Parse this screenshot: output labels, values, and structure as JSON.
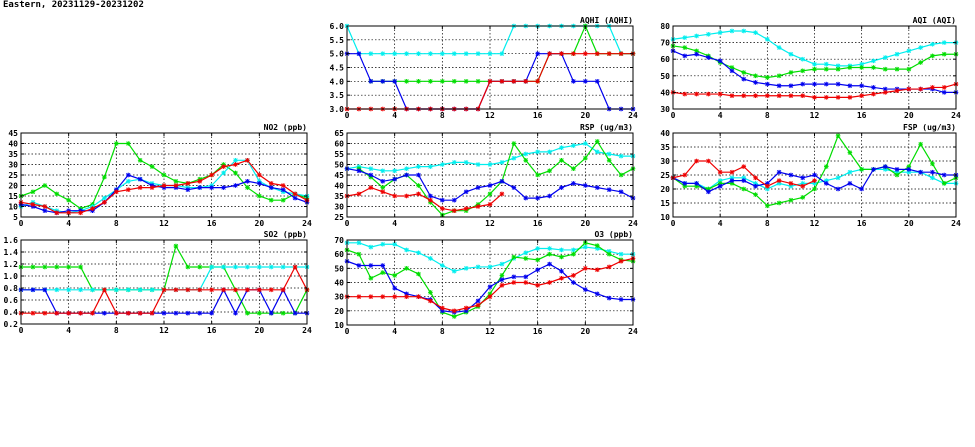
{
  "page": {
    "title": "Eastern, 20231129-20231202"
  },
  "colors": {
    "blue": "#0000ee",
    "red": "#ee0000",
    "green": "#00dd00",
    "cyan": "#00eeee"
  },
  "chart_data": [
    {
      "id": "aqhi",
      "type": "line",
      "title": "AQHI (AQHI)",
      "ylim": [
        3.0,
        6.0
      ],
      "yticks": [
        3.0,
        3.5,
        4.0,
        4.5,
        5.0,
        5.5,
        6.0
      ],
      "ytick_labels": [
        "3.0",
        "3.5",
        "4.0",
        "4.5",
        "5.0",
        "5.5",
        "6.0"
      ],
      "xlim": [
        0,
        24
      ],
      "xticks": [
        0,
        4,
        8,
        12,
        16,
        20,
        24
      ],
      "series": [
        {
          "color": "cyan",
          "values": [
            6,
            5,
            5,
            5,
            5,
            5,
            5,
            5,
            5,
            5,
            5,
            5,
            5,
            5,
            6,
            6,
            6,
            6,
            6,
            6,
            6,
            6,
            6,
            5,
            5
          ]
        },
        {
          "color": "green",
          "values": [
            null,
            null,
            4,
            4,
            4,
            4,
            4,
            4,
            4,
            4,
            4,
            4,
            4,
            4,
            4,
            4,
            4,
            5,
            5,
            5,
            6,
            5,
            5,
            5,
            5
          ]
        },
        {
          "color": "blue",
          "values": [
            5,
            5,
            4,
            4,
            4,
            3,
            3,
            3,
            3,
            3,
            3,
            3,
            4,
            4,
            4,
            4,
            5,
            5,
            5,
            4,
            4,
            4,
            3,
            3,
            3
          ]
        },
        {
          "color": "red",
          "values": [
            3,
            3,
            3,
            3,
            3,
            3,
            3,
            3,
            3,
            3,
            3,
            3,
            4,
            4,
            4,
            4,
            4,
            5,
            5,
            5,
            5,
            5,
            5,
            5,
            5
          ]
        }
      ]
    },
    {
      "id": "aqi",
      "type": "line",
      "title": "AQI (AQI)",
      "ylim": [
        30,
        80
      ],
      "yticks": [
        30,
        40,
        50,
        60,
        70,
        80
      ],
      "ytick_labels": [
        "30",
        "40",
        "50",
        "60",
        "70",
        "80"
      ],
      "xlim": [
        0,
        24
      ],
      "xticks": [
        0,
        4,
        8,
        12,
        16,
        20,
        24
      ],
      "series": [
        {
          "color": "cyan",
          "values": [
            72,
            73,
            74,
            75,
            76,
            77,
            77,
            76,
            72,
            67,
            63,
            60,
            57,
            57,
            56,
            56,
            57,
            59,
            61,
            63,
            65,
            67,
            69,
            70,
            70
          ]
        },
        {
          "color": "green",
          "values": [
            68,
            67,
            65,
            62,
            58,
            55,
            52,
            50,
            49,
            50,
            52,
            53,
            54,
            54,
            54,
            55,
            55,
            55,
            54,
            54,
            54,
            58,
            62,
            63,
            63
          ]
        },
        {
          "color": "blue",
          "values": [
            65,
            62,
            63,
            61,
            59,
            53,
            48,
            46,
            45,
            44,
            44,
            45,
            45,
            45,
            45,
            44,
            44,
            43,
            42,
            42,
            42,
            42,
            42,
            40,
            40
          ]
        },
        {
          "color": "red",
          "values": [
            40,
            39,
            39,
            39,
            39,
            38,
            38,
            38,
            38,
            38,
            38,
            38,
            37,
            37,
            37,
            37,
            38,
            39,
            40,
            41,
            42,
            42,
            43,
            43,
            45
          ]
        }
      ]
    },
    {
      "id": "no2",
      "type": "line",
      "title": "NO2 (ppb)",
      "ylim": [
        5,
        45
      ],
      "yticks": [
        5,
        10,
        15,
        20,
        25,
        30,
        35,
        40,
        45
      ],
      "ytick_labels": [
        "5",
        "10",
        "15",
        "20",
        "25",
        "30",
        "35",
        "40",
        "45"
      ],
      "xlim": [
        0,
        24
      ],
      "xticks": [
        0,
        4,
        8,
        12,
        16,
        20,
        24
      ],
      "series": [
        {
          "color": "green",
          "values": [
            15,
            17,
            20,
            16,
            13,
            9,
            11,
            24,
            40,
            40,
            32,
            29,
            25,
            22,
            21,
            23,
            25,
            30,
            26,
            19,
            15,
            13,
            13,
            16,
            14
          ]
        },
        {
          "color": "cyan",
          "values": [
            10,
            12,
            10,
            8,
            7,
            8,
            10,
            14,
            18,
            22,
            23,
            21,
            20,
            20,
            19,
            19,
            20,
            26,
            32,
            32,
            22,
            19,
            17,
            16,
            15
          ]
        },
        {
          "color": "blue",
          "values": [
            11,
            10,
            8,
            7,
            8,
            8,
            8,
            12,
            18,
            25,
            23,
            20,
            19,
            19,
            18,
            19,
            19,
            19,
            20,
            22,
            21,
            19,
            18,
            14,
            12
          ]
        },
        {
          "color": "red",
          "values": [
            12,
            11,
            10,
            7,
            7,
            7,
            9,
            12,
            17,
            18,
            19,
            19,
            20,
            20,
            21,
            22,
            25,
            29,
            30,
            32,
            25,
            21,
            20,
            16,
            13
          ]
        }
      ]
    },
    {
      "id": "rsp",
      "type": "line",
      "title": "RSP (ug/m3)",
      "ylim": [
        25,
        65
      ],
      "yticks": [
        25,
        30,
        35,
        40,
        45,
        50,
        55,
        60,
        65
      ],
      "ytick_labels": [
        "25",
        "30",
        "35",
        "40",
        "45",
        "50",
        "55",
        "60",
        "65"
      ],
      "xlim": [
        0,
        24
      ],
      "xticks": [
        0,
        4,
        8,
        12,
        16,
        20,
        24
      ],
      "series": [
        {
          "color": "cyan",
          "values": [
            48,
            49,
            48,
            47,
            47,
            48,
            49,
            49,
            50,
            51,
            51,
            50,
            50,
            51,
            53,
            55,
            56,
            56,
            58,
            59,
            60,
            56,
            55,
            54,
            54
          ]
        },
        {
          "color": "green",
          "values": [
            null,
            48,
            44,
            39,
            43,
            45,
            40,
            32,
            26,
            28,
            28,
            31,
            36,
            42,
            60,
            52,
            45,
            47,
            52,
            48,
            53,
            61,
            52,
            45,
            48
          ]
        },
        {
          "color": "blue",
          "values": [
            48,
            47,
            45,
            42,
            43,
            45,
            45,
            35,
            33,
            33,
            37,
            39,
            40,
            42,
            39,
            34,
            34,
            35,
            39,
            41,
            40,
            39,
            38,
            37,
            34
          ]
        },
        {
          "color": "red",
          "values": [
            35,
            36,
            39,
            37,
            35,
            35,
            36,
            33,
            29,
            28,
            29,
            30,
            31,
            36,
            null,
            null,
            null,
            null,
            null,
            null,
            null,
            null,
            null,
            null,
            null
          ]
        }
      ]
    },
    {
      "id": "fsp",
      "type": "line",
      "title": "FSP (ug/m3)",
      "ylim": [
        10,
        40
      ],
      "yticks": [
        10,
        15,
        20,
        25,
        30,
        35,
        40
      ],
      "ytick_labels": [
        "10",
        "15",
        "20",
        "25",
        "30",
        "35",
        "40"
      ],
      "xlim": [
        0,
        24
      ],
      "xticks": [
        0,
        4,
        8,
        12,
        16,
        20,
        24
      ],
      "series": [
        {
          "color": "cyan",
          "values": [
            24,
            22,
            22,
            20,
            23,
            24,
            24,
            22,
            20,
            22,
            21,
            22,
            22,
            23,
            24,
            26,
            27,
            27,
            27,
            26,
            26,
            26,
            24,
            22,
            22
          ]
        },
        {
          "color": "green",
          "values": [
            24,
            21,
            21,
            20,
            22,
            22,
            20,
            18,
            14,
            15,
            16,
            17,
            20,
            28,
            39,
            33,
            27,
            27,
            28,
            25,
            28,
            36,
            29,
            22,
            24
          ]
        },
        {
          "color": "blue",
          "values": [
            24,
            22,
            22,
            19,
            21,
            23,
            23,
            21,
            22,
            26,
            25,
            24,
            25,
            22,
            20,
            22,
            20,
            27,
            28,
            27,
            27,
            26,
            26,
            25,
            25
          ]
        },
        {
          "color": "red",
          "values": [
            24,
            25,
            30,
            30,
            26,
            26,
            28,
            24,
            21,
            23,
            22,
            21,
            23,
            null,
            null,
            null,
            null,
            null,
            null,
            null,
            null,
            null,
            null,
            null,
            null
          ]
        }
      ]
    },
    {
      "id": "so2",
      "type": "line",
      "title": "SO2 (ppb)",
      "ylim": [
        0.2,
        1.6
      ],
      "yticks": [
        0.2,
        0.4,
        0.6,
        0.8,
        1.0,
        1.2,
        1.4,
        1.6
      ],
      "ytick_labels": [
        "0.2",
        "0.4",
        "0.6",
        "0.8",
        "1.0",
        "1.2",
        "1.4",
        "1.6"
      ],
      "xlim": [
        0,
        24
      ],
      "xticks": [
        0,
        4,
        8,
        12,
        16,
        20,
        24
      ],
      "series": [
        {
          "color": "green",
          "values": [
            1.15,
            1.15,
            1.15,
            1.15,
            1.15,
            1.15,
            0.77,
            0.77,
            0.77,
            0.77,
            0.77,
            0.77,
            0.77,
            1.5,
            1.15,
            1.15,
            1.15,
            1.15,
            0.77,
            0.38,
            0.38,
            0.38,
            0.38,
            0.38,
            0.77
          ]
        },
        {
          "color": "cyan",
          "values": [
            0.77,
            0.77,
            0.77,
            0.77,
            0.77,
            0.77,
            0.77,
            0.77,
            0.77,
            0.77,
            0.77,
            0.77,
            0.77,
            0.77,
            0.77,
            0.77,
            1.15,
            1.15,
            1.15,
            1.15,
            1.15,
            1.15,
            1.15,
            1.15,
            1.15
          ]
        },
        {
          "color": "blue",
          "values": [
            0.77,
            0.77,
            0.77,
            0.38,
            0.38,
            0.38,
            0.38,
            0.38,
            0.38,
            0.38,
            0.38,
            0.38,
            0.38,
            0.38,
            0.38,
            0.38,
            0.38,
            0.77,
            0.38,
            0.77,
            0.77,
            0.38,
            0.77,
            0.38,
            0.38
          ]
        },
        {
          "color": "red",
          "values": [
            0.38,
            0.38,
            0.38,
            0.38,
            0.38,
            0.38,
            0.38,
            0.77,
            0.38,
            0.38,
            0.38,
            0.38,
            0.77,
            0.77,
            0.77,
            0.77,
            0.77,
            0.77,
            0.77,
            0.77,
            0.77,
            0.77,
            0.77,
            1.15,
            0.77
          ]
        }
      ]
    },
    {
      "id": "o3",
      "type": "line",
      "title": "O3 (ppb)",
      "ylim": [
        10,
        70
      ],
      "yticks": [
        10,
        20,
        30,
        40,
        50,
        60,
        70
      ],
      "ytick_labels": [
        "10",
        "20",
        "30",
        "40",
        "50",
        "60",
        "70"
      ],
      "xlim": [
        0,
        24
      ],
      "xticks": [
        0,
        4,
        8,
        12,
        16,
        20,
        24
      ],
      "series": [
        {
          "color": "cyan",
          "values": [
            68,
            68,
            65,
            67,
            67,
            63,
            61,
            57,
            52,
            48,
            50,
            51,
            51,
            53,
            57,
            61,
            64,
            64,
            63,
            63,
            65,
            64,
            62,
            60,
            60
          ]
        },
        {
          "color": "green",
          "values": [
            63,
            60,
            43,
            47,
            45,
            50,
            46,
            33,
            19,
            16,
            19,
            23,
            32,
            45,
            58,
            57,
            56,
            60,
            58,
            60,
            68,
            66,
            60,
            56,
            55
          ]
        },
        {
          "color": "blue",
          "values": [
            55,
            52,
            52,
            52,
            36,
            32,
            30,
            28,
            20,
            19,
            20,
            27,
            37,
            42,
            44,
            44,
            49,
            53,
            48,
            40,
            35,
            32,
            29,
            28,
            28
          ]
        },
        {
          "color": "red",
          "values": [
            30,
            30,
            30,
            30,
            30,
            30,
            30,
            27,
            22,
            20,
            22,
            24,
            30,
            38,
            40,
            40,
            38,
            40,
            43,
            45,
            50,
            49,
            51,
            55,
            57
          ]
        }
      ]
    }
  ]
}
